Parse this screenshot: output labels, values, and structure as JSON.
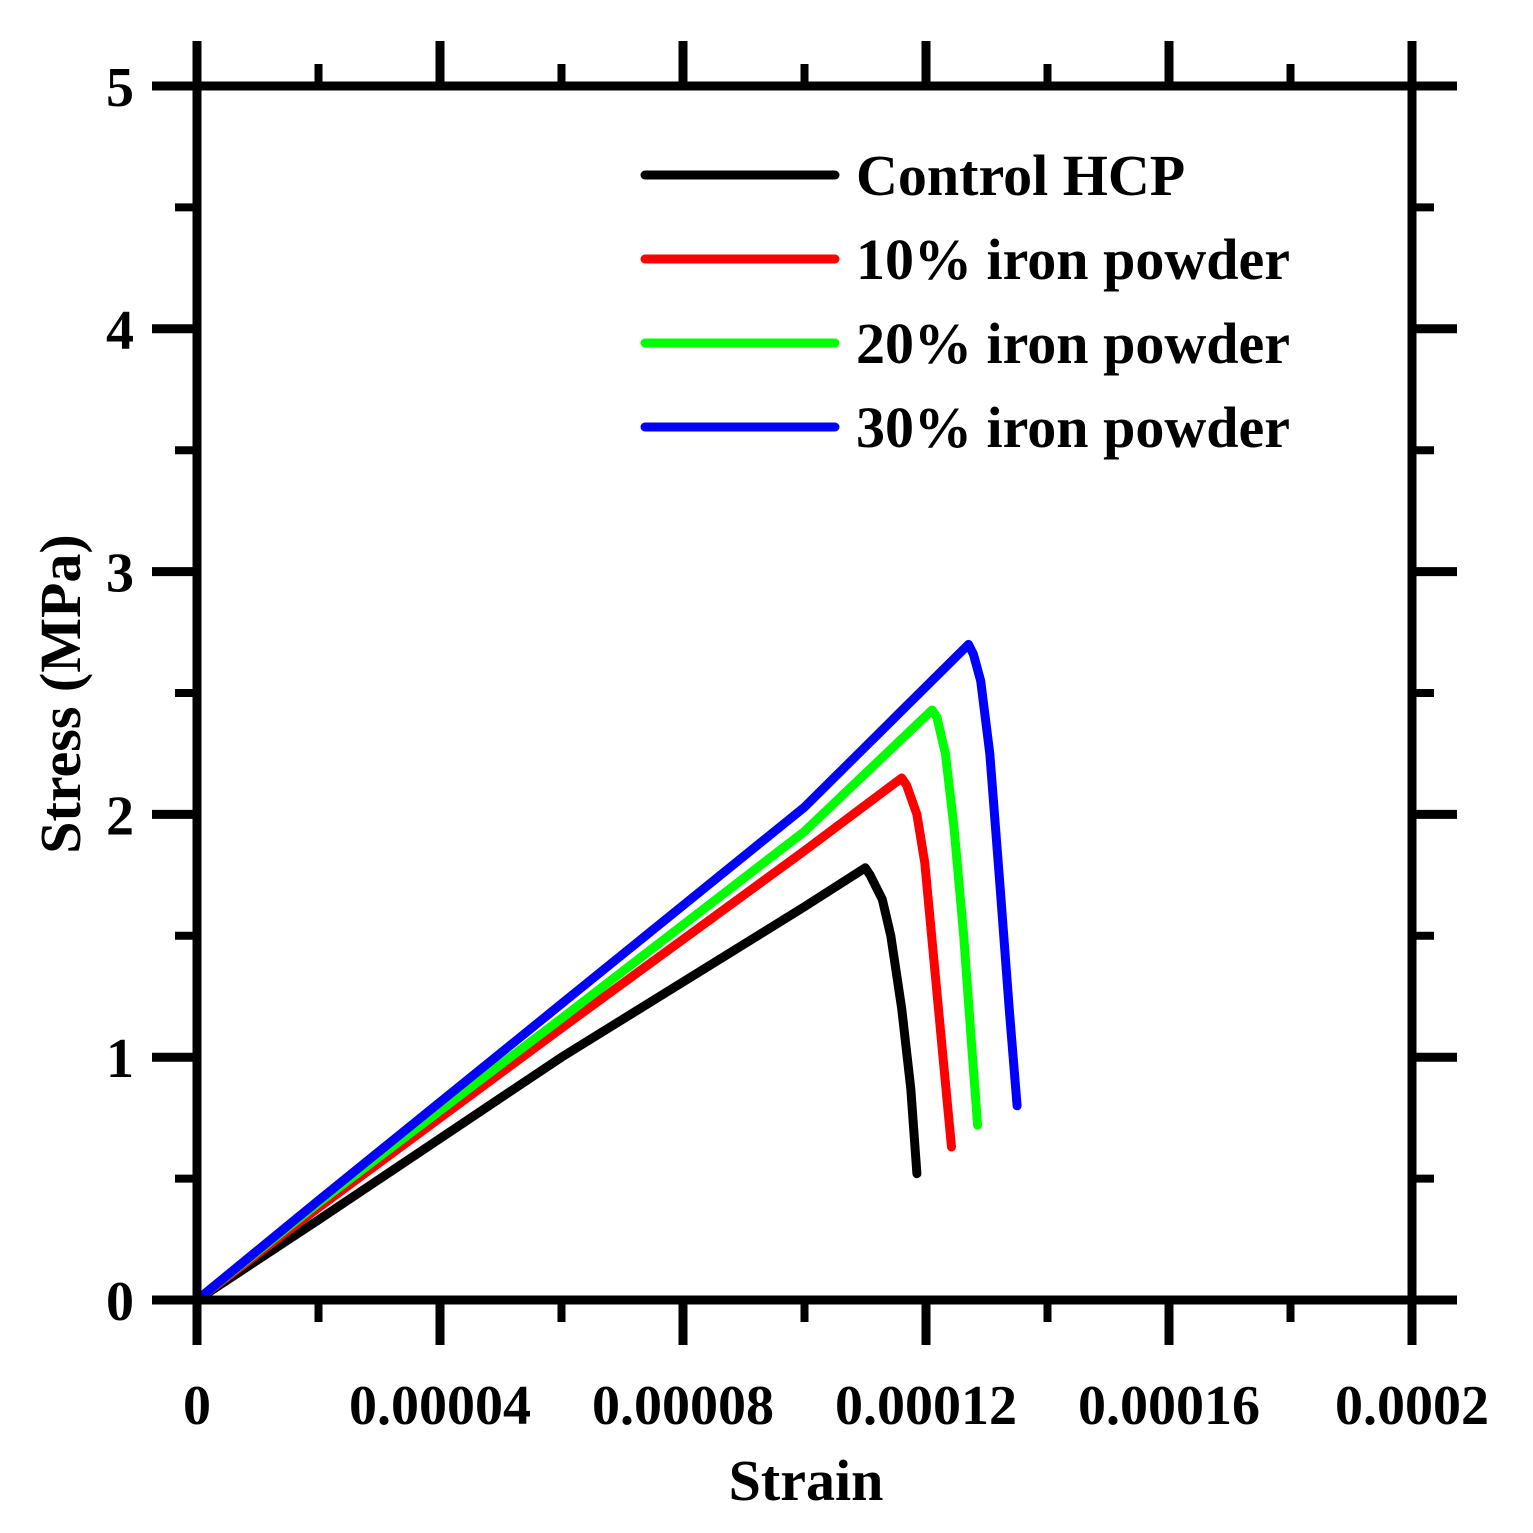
{
  "chart_data": {
    "type": "line",
    "xlabel": "Strain",
    "ylabel": "Stress (MPa)",
    "xlim": [
      0,
      0.0002
    ],
    "ylim": [
      0,
      5
    ],
    "x_ticks": [
      0,
      4e-05,
      8e-05,
      0.00012,
      0.00016,
      0.0002
    ],
    "x_tick_labels": [
      "0",
      "0.00004",
      "0.00008",
      "0.00012",
      "0.00016",
      "0.0002"
    ],
    "x_minor_ticks": [
      2e-05,
      6e-05,
      0.0001,
      0.00014,
      0.00018
    ],
    "y_ticks": [
      0,
      1,
      2,
      3,
      4,
      5
    ],
    "y_tick_labels": [
      "0",
      "1",
      "2",
      "3",
      "4",
      "5"
    ],
    "y_minor_ticks": [
      0.5,
      1.5,
      2.5,
      3.5,
      4.5
    ],
    "grid": false,
    "legend_position": "top-right",
    "series": [
      {
        "name": "Control HCP",
        "color": "#000000",
        "x": [
          0,
          2e-05,
          6e-05,
          0.0001,
          0.00011,
          0.0001108,
          0.0001128,
          0.0001142,
          0.000116,
          0.0001175,
          0.0001185
        ],
        "y": [
          0,
          0.33,
          1.0,
          1.62,
          1.78,
          1.75,
          1.65,
          1.5,
          1.2,
          0.87,
          0.52
        ]
      },
      {
        "name": "10% iron powder",
        "color": "#ff0000",
        "x": [
          0,
          2e-05,
          6e-05,
          0.0001,
          0.000116,
          0.0001168,
          0.0001185,
          0.0001198,
          0.0001213,
          0.0001228,
          0.0001242
        ],
        "y": [
          0,
          0.38,
          1.12,
          1.85,
          2.15,
          2.12,
          2.0,
          1.8,
          1.4,
          1.0,
          0.63
        ]
      },
      {
        "name": "20% iron powder",
        "color": "#00ff00",
        "x": [
          0,
          2e-05,
          6e-05,
          0.0001,
          0.000121,
          0.0001218,
          0.0001232,
          0.0001246,
          0.0001262,
          0.0001275,
          0.0001285
        ],
        "y": [
          0,
          0.4,
          1.16,
          1.93,
          2.43,
          2.4,
          2.25,
          1.95,
          1.5,
          1.05,
          0.72
        ]
      },
      {
        "name": "30% iron powder",
        "color": "#0000ff",
        "x": [
          0,
          2e-05,
          6e-05,
          0.0001,
          0.000127,
          0.0001278,
          0.000129,
          0.0001305,
          0.0001322,
          0.0001337,
          0.000135
        ],
        "y": [
          0,
          0.41,
          1.22,
          2.03,
          2.7,
          2.66,
          2.55,
          2.25,
          1.7,
          1.2,
          0.8
        ]
      }
    ]
  }
}
